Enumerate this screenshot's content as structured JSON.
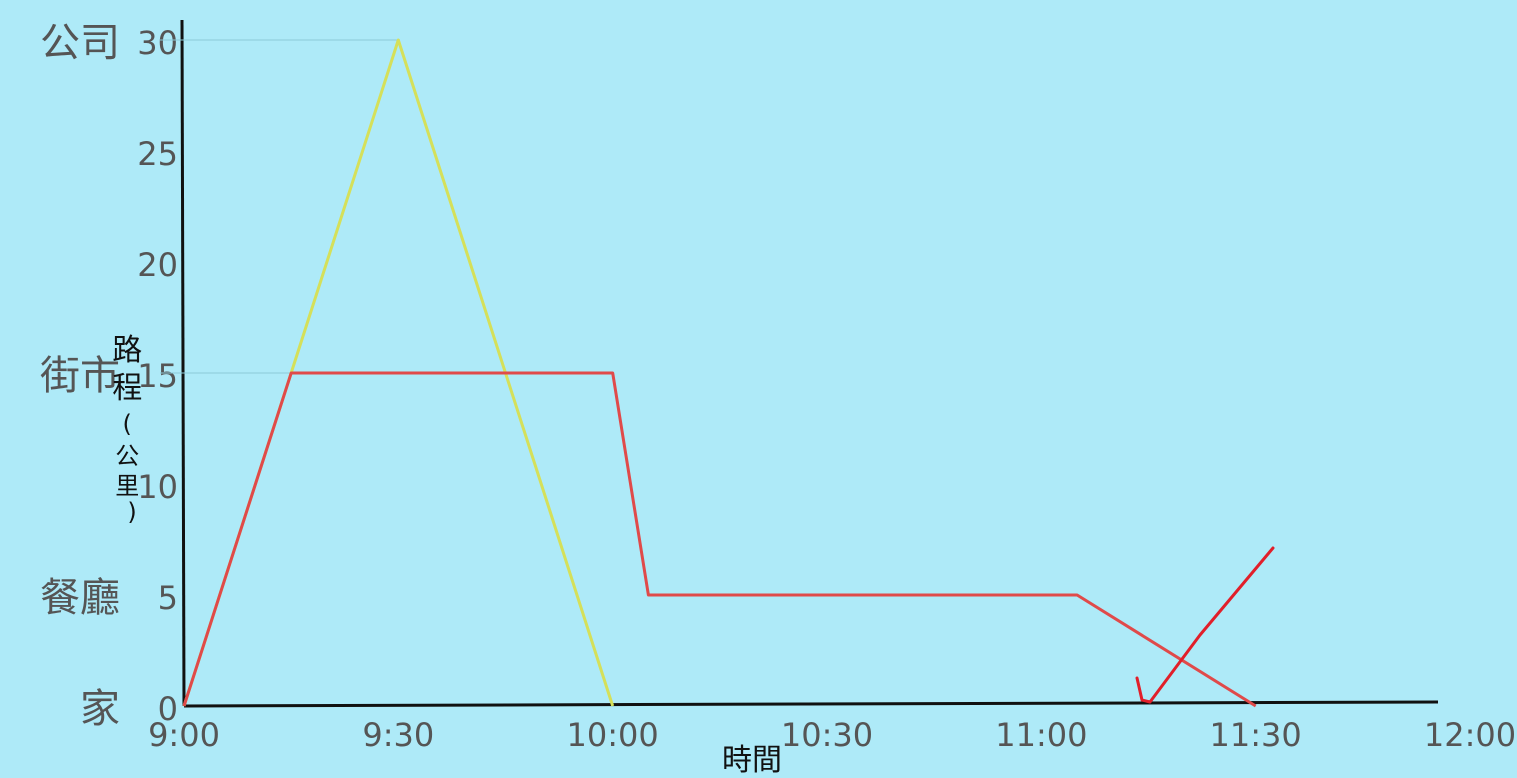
{
  "chart_data": {
    "type": "line",
    "xlabel": "時間",
    "ylabel": "路程(公里)",
    "x_ticks": [
      "9:00",
      "9:30",
      "10:00",
      "10:30",
      "11:00",
      "11:30",
      "12:00"
    ],
    "y_ticks": [
      0,
      5,
      10,
      15,
      20,
      25,
      30
    ],
    "xlim": [
      "9:00",
      "12:00"
    ],
    "ylim": [
      0,
      30
    ],
    "place_labels": [
      {
        "text": "公司",
        "y": 30
      },
      {
        "text": "街市",
        "y": 15
      },
      {
        "text": "餐廳",
        "y": 5
      },
      {
        "text": "家",
        "y": 0
      }
    ],
    "series": [
      {
        "color": "#d5e05a",
        "x": [
          "9:00",
          "9:30",
          "10:00"
        ],
        "y": [
          0,
          30,
          0
        ]
      },
      {
        "color": "#e04a4a",
        "x": [
          "9:00",
          "9:15",
          "9:30",
          "10:00",
          "10:05",
          "11:05",
          "11:30"
        ],
        "y": [
          0,
          15,
          15,
          15,
          5,
          5,
          0
        ]
      }
    ],
    "grid": false,
    "legend": "none",
    "annotations": [
      {
        "type": "checkmark",
        "color": "#e11f2a"
      }
    ]
  }
}
